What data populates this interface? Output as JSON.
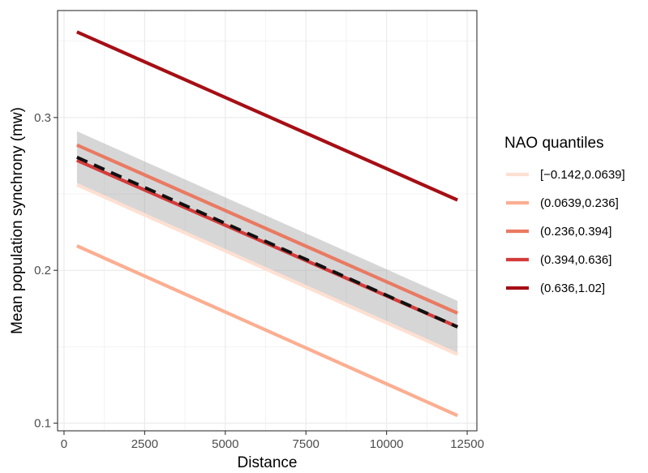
{
  "chart_data": {
    "type": "line",
    "title": "",
    "xlabel": "Distance",
    "ylabel": "Mean population synchrony (mw)",
    "xlim": [
      -200,
      12800
    ],
    "ylim": [
      0.095,
      0.37
    ],
    "x_ticks": [
      0,
      2500,
      5000,
      7500,
      10000,
      12500
    ],
    "x_tick_labels": [
      "0",
      "2500",
      "5000",
      "7500",
      "10000",
      "12500"
    ],
    "y_ticks": [
      0.1,
      0.2,
      0.3
    ],
    "y_tick_labels": [
      "0.1",
      "0.2",
      "0.3"
    ],
    "grid": true,
    "legend": {
      "title": "NAO quantiles",
      "placement": "right"
    },
    "series": [
      {
        "name": "[−0.142,0.0639]",
        "color": "#fee0d2",
        "x": [
          400,
          12200
        ],
        "y": [
          0.256,
          0.145
        ]
      },
      {
        "name": "(0.0639,0.236]",
        "color": "#fcae91",
        "x": [
          400,
          12200
        ],
        "y": [
          0.216,
          0.105
        ]
      },
      {
        "name": "(0.236,0.394]",
        "color": "#e97a62",
        "x": [
          400,
          12200
        ],
        "y": [
          0.282,
          0.172
        ]
      },
      {
        "name": "(0.394,0.636]",
        "color": "#d53b3b",
        "x": [
          400,
          12200
        ],
        "y": [
          0.272,
          0.163
        ]
      },
      {
        "name": "(0.636,1.02]",
        "color": "#a50f15",
        "x": [
          400,
          12200
        ],
        "y": [
          0.356,
          0.246
        ]
      }
    ],
    "overall_fit": {
      "color": "#111111",
      "style": "dashed",
      "x": [
        400,
        12200
      ],
      "y": [
        0.274,
        0.163
      ],
      "ci_upper": [
        0.291,
        0.18
      ],
      "ci_lower": [
        0.257,
        0.146
      ],
      "ci_color": "#999999"
    }
  }
}
